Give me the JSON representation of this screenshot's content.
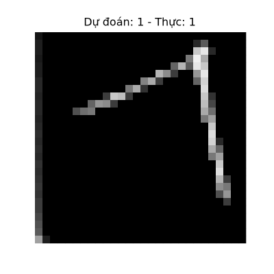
{
  "chart_data": {
    "type": "heatmap",
    "title": "Dự đoán: 1 - Thực: 1",
    "cmap": "gray",
    "vlim": [
      0,
      255
    ],
    "values": [
      [
        20,
        0,
        0,
        0,
        0,
        0,
        0,
        0,
        0,
        0,
        0,
        0,
        0,
        0,
        0,
        0,
        0,
        0,
        0,
        0,
        0,
        0,
        0,
        0,
        0,
        0,
        0,
        0
      ],
      [
        30,
        0,
        0,
        0,
        0,
        0,
        0,
        0,
        0,
        0,
        0,
        0,
        0,
        0,
        0,
        0,
        0,
        0,
        0,
        0,
        0,
        40,
        90,
        0,
        0,
        0,
        0,
        0
      ],
      [
        30,
        0,
        0,
        0,
        0,
        0,
        0,
        0,
        0,
        0,
        0,
        0,
        0,
        0,
        0,
        0,
        0,
        0,
        0,
        0,
        0,
        200,
        230,
        40,
        0,
        0,
        0,
        0
      ],
      [
        25,
        0,
        0,
        0,
        0,
        0,
        0,
        0,
        0,
        0,
        0,
        0,
        0,
        0,
        0,
        0,
        0,
        0,
        0,
        0,
        120,
        240,
        170,
        0,
        0,
        0,
        0,
        0
      ],
      [
        30,
        0,
        0,
        0,
        0,
        0,
        0,
        0,
        0,
        0,
        0,
        0,
        0,
        0,
        0,
        0,
        0,
        0,
        100,
        180,
        90,
        230,
        200,
        0,
        0,
        0,
        0,
        0
      ],
      [
        30,
        0,
        0,
        0,
        0,
        0,
        0,
        0,
        0,
        0,
        0,
        0,
        0,
        0,
        0,
        0,
        180,
        140,
        60,
        0,
        0,
        150,
        230,
        0,
        0,
        0,
        0,
        0
      ],
      [
        40,
        0,
        0,
        0,
        0,
        0,
        0,
        0,
        0,
        0,
        0,
        0,
        0,
        0,
        130,
        170,
        60,
        0,
        0,
        0,
        0,
        100,
        210,
        0,
        0,
        0,
        0,
        0
      ],
      [
        40,
        0,
        0,
        0,
        0,
        0,
        0,
        0,
        0,
        0,
        0,
        0,
        120,
        170,
        50,
        0,
        0,
        0,
        0,
        0,
        0,
        0,
        220,
        0,
        0,
        0,
        0,
        0
      ],
      [
        35,
        0,
        0,
        0,
        0,
        0,
        0,
        0,
        0,
        60,
        200,
        190,
        60,
        0,
        0,
        0,
        0,
        0,
        0,
        0,
        0,
        0,
        200,
        50,
        0,
        0,
        0,
        0
      ],
      [
        40,
        0,
        0,
        0,
        0,
        0,
        0,
        100,
        150,
        140,
        60,
        0,
        0,
        0,
        0,
        0,
        0,
        0,
        0,
        0,
        0,
        0,
        190,
        70,
        0,
        0,
        0,
        0
      ],
      [
        40,
        0,
        0,
        0,
        0,
        80,
        110,
        120,
        0,
        0,
        0,
        0,
        0,
        0,
        0,
        0,
        0,
        0,
        0,
        0,
        0,
        0,
        170,
        110,
        0,
        0,
        0,
        0
      ],
      [
        35,
        0,
        0,
        0,
        0,
        0,
        0,
        0,
        0,
        0,
        0,
        0,
        0,
        0,
        0,
        0,
        0,
        0,
        0,
        0,
        0,
        0,
        120,
        160,
        0,
        0,
        0,
        0
      ],
      [
        40,
        0,
        0,
        0,
        0,
        0,
        0,
        0,
        0,
        0,
        0,
        0,
        0,
        0,
        0,
        0,
        0,
        0,
        0,
        0,
        0,
        0,
        0,
        200,
        0,
        0,
        0,
        0
      ],
      [
        45,
        0,
        0,
        0,
        0,
        0,
        0,
        0,
        0,
        0,
        0,
        0,
        0,
        0,
        0,
        0,
        0,
        0,
        0,
        0,
        0,
        0,
        0,
        220,
        0,
        0,
        0,
        0
      ],
      [
        40,
        0,
        0,
        0,
        0,
        0,
        0,
        0,
        0,
        0,
        0,
        0,
        0,
        0,
        0,
        0,
        0,
        0,
        0,
        0,
        0,
        0,
        0,
        210,
        40,
        0,
        0,
        0
      ],
      [
        45,
        0,
        0,
        0,
        0,
        0,
        0,
        0,
        0,
        0,
        0,
        0,
        0,
        0,
        0,
        0,
        0,
        0,
        0,
        0,
        0,
        0,
        0,
        170,
        100,
        0,
        0,
        0
      ],
      [
        40,
        0,
        0,
        0,
        0,
        0,
        0,
        0,
        0,
        0,
        0,
        0,
        0,
        0,
        0,
        0,
        0,
        0,
        0,
        0,
        0,
        0,
        0,
        120,
        160,
        0,
        0,
        0
      ],
      [
        50,
        0,
        0,
        0,
        0,
        0,
        0,
        0,
        0,
        0,
        0,
        0,
        0,
        0,
        0,
        0,
        0,
        0,
        0,
        0,
        0,
        0,
        0,
        0,
        200,
        0,
        0,
        0
      ],
      [
        45,
        0,
        0,
        0,
        0,
        0,
        0,
        0,
        0,
        0,
        0,
        0,
        0,
        0,
        0,
        0,
        0,
        0,
        0,
        0,
        0,
        0,
        0,
        0,
        220,
        0,
        0,
        0
      ],
      [
        50,
        0,
        0,
        0,
        0,
        0,
        0,
        0,
        0,
        0,
        0,
        0,
        0,
        0,
        0,
        0,
        0,
        0,
        0,
        0,
        0,
        0,
        0,
        0,
        180,
        60,
        0,
        0
      ],
      [
        55,
        0,
        0,
        0,
        0,
        0,
        0,
        0,
        0,
        0,
        0,
        0,
        0,
        0,
        0,
        0,
        0,
        0,
        0,
        0,
        0,
        0,
        0,
        0,
        140,
        120,
        0,
        0
      ],
      [
        50,
        0,
        0,
        0,
        0,
        0,
        0,
        0,
        0,
        0,
        0,
        0,
        0,
        0,
        0,
        0,
        0,
        0,
        0,
        0,
        0,
        0,
        0,
        0,
        80,
        150,
        0,
        0
      ],
      [
        60,
        0,
        0,
        0,
        0,
        0,
        0,
        0,
        0,
        0,
        0,
        0,
        0,
        0,
        0,
        0,
        0,
        0,
        0,
        0,
        0,
        0,
        0,
        0,
        0,
        60,
        0,
        0
      ],
      [
        60,
        0,
        0,
        0,
        0,
        0,
        0,
        0,
        0,
        0,
        0,
        0,
        0,
        0,
        0,
        0,
        0,
        0,
        0,
        0,
        0,
        0,
        0,
        0,
        0,
        0,
        0,
        0
      ],
      [
        70,
        0,
        0,
        0,
        0,
        0,
        0,
        0,
        0,
        0,
        0,
        0,
        0,
        0,
        0,
        0,
        0,
        0,
        0,
        0,
        0,
        0,
        0,
        0,
        0,
        0,
        0,
        0
      ],
      [
        80,
        0,
        0,
        0,
        0,
        0,
        0,
        0,
        0,
        0,
        0,
        0,
        0,
        0,
        0,
        0,
        0,
        0,
        0,
        0,
        0,
        0,
        0,
        0,
        0,
        0,
        0,
        0
      ],
      [
        90,
        0,
        0,
        0,
        0,
        0,
        0,
        0,
        0,
        0,
        0,
        0,
        0,
        0,
        0,
        0,
        0,
        0,
        0,
        0,
        0,
        0,
        0,
        0,
        0,
        0,
        0,
        0
      ],
      [
        160,
        30,
        0,
        0,
        0,
        0,
        0,
        0,
        0,
        0,
        0,
        0,
        0,
        0,
        0,
        0,
        0,
        0,
        0,
        0,
        0,
        0,
        0,
        0,
        0,
        0,
        0,
        0
      ]
    ]
  }
}
